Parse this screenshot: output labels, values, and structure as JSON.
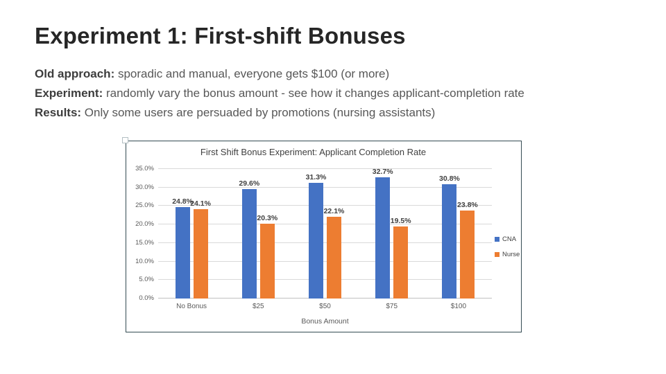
{
  "slide": {
    "title": "Experiment 1: First-shift Bonuses",
    "bullets": [
      {
        "label": "Old approach:",
        "text": " sporadic and manual, everyone gets $100 (or more)"
      },
      {
        "label": "Experiment:",
        "text": " randomly vary the bonus amount - see how it changes applicant-completion rate"
      },
      {
        "label": "Results:",
        "text": " Only some users are persuaded by promotions (nursing assistants)"
      }
    ]
  },
  "chart_data": {
    "type": "bar",
    "title": "First Shift Bonus Experiment: Applicant Completion Rate",
    "xlabel": "Bonus Amount",
    "ylabel": "",
    "categories": [
      "No Bonus",
      "$25",
      "$50",
      "$75",
      "$100"
    ],
    "series": [
      {
        "name": "CNA",
        "color": "#4472C4",
        "values": [
          24.8,
          29.6,
          31.3,
          32.7,
          30.8
        ],
        "labels": [
          "24.8%",
          "29.6%",
          "31.3%",
          "32.7%",
          "30.8%"
        ]
      },
      {
        "name": "Nurse",
        "color": "#ED7D31",
        "values": [
          24.1,
          20.3,
          22.1,
          19.5,
          23.8
        ],
        "labels": [
          "24.1%",
          "20.3%",
          "22.1%",
          "19.5%",
          "23.8%"
        ]
      }
    ],
    "ylim": [
      0,
      35
    ],
    "y_ticks": [
      "0.0%",
      "5.0%",
      "10.0%",
      "15.0%",
      "20.0%",
      "25.0%",
      "30.0%",
      "35.0%"
    ],
    "grid": true,
    "legend_position": "right"
  },
  "colors": {
    "cna_blue": "#4472C4",
    "nurse_orange": "#ED7D31",
    "chart_border": "#334A52",
    "gridline": "#D9D9D9",
    "axis_text": "#595959",
    "data_label": "#404040"
  }
}
